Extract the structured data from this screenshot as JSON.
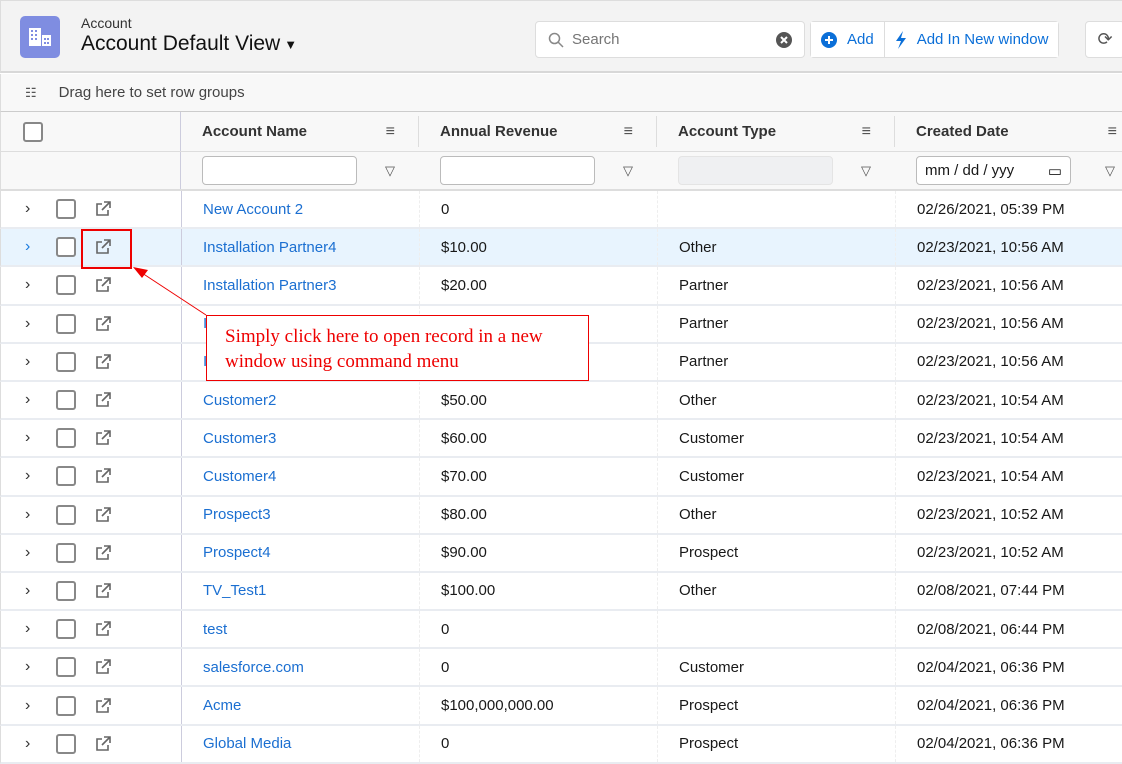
{
  "header": {
    "object_label": "Account",
    "view_title": "Account Default View",
    "search_placeholder": "Search",
    "add_label": "Add",
    "add_new_window_label": "Add In New window"
  },
  "group_bar": {
    "label": "Drag here to set row groups"
  },
  "columns": [
    {
      "label": "Account Name"
    },
    {
      "label": "Annual Revenue"
    },
    {
      "label": "Account Type"
    },
    {
      "label": "Created Date"
    }
  ],
  "date_filter_placeholder": "mm / dd / yyy",
  "rows": [
    {
      "name": "New Account 2",
      "revenue": "0",
      "type": "",
      "date": "02/26/2021, 05:39 PM"
    },
    {
      "name": "Installation Partner4",
      "revenue": "$10.00",
      "type": "Other",
      "date": "02/23/2021, 10:56 AM",
      "selected": true
    },
    {
      "name": "Installation Partner3",
      "revenue": "$20.00",
      "type": "Partner",
      "date": "02/23/2021, 10:56 AM"
    },
    {
      "name": "I",
      "revenue": "",
      "type": "Partner",
      "date": "02/23/2021, 10:56 AM"
    },
    {
      "name": "I",
      "revenue": "",
      "type": "Partner",
      "date": "02/23/2021, 10:56 AM"
    },
    {
      "name": "Customer2",
      "revenue": "$50.00",
      "type": "Other",
      "date": "02/23/2021, 10:54 AM"
    },
    {
      "name": "Customer3",
      "revenue": "$60.00",
      "type": "Customer",
      "date": "02/23/2021, 10:54 AM"
    },
    {
      "name": "Customer4",
      "revenue": "$70.00",
      "type": "Customer",
      "date": "02/23/2021, 10:54 AM"
    },
    {
      "name": "Prospect3",
      "revenue": "$80.00",
      "type": "Other",
      "date": "02/23/2021, 10:52 AM"
    },
    {
      "name": "Prospect4",
      "revenue": "$90.00",
      "type": "Prospect",
      "date": "02/23/2021, 10:52 AM"
    },
    {
      "name": "TV_Test1",
      "revenue": "$100.00",
      "type": "Other",
      "date": "02/08/2021, 07:44 PM"
    },
    {
      "name": "test",
      "revenue": "0",
      "type": "",
      "date": "02/08/2021, 06:44 PM"
    },
    {
      "name": "salesforce.com",
      "revenue": "0",
      "type": "Customer",
      "date": "02/04/2021, 06:36 PM"
    },
    {
      "name": "Acme",
      "revenue": "$100,000,000.00",
      "type": "Prospect",
      "date": "02/04/2021, 06:36 PM"
    },
    {
      "name": "Global Media",
      "revenue": "0",
      "type": "Prospect",
      "date": "02/04/2021, 06:36 PM"
    }
  ],
  "annotation": {
    "text_line1": "Simply click here to open record in a new",
    "text_line2": "window using command menu",
    "color": "#ee0000"
  },
  "colors": {
    "link": "#1b6fd1",
    "accent": "#0b6fd8",
    "logo": "#7f8de1",
    "selected_row": "#e8f4fe"
  }
}
